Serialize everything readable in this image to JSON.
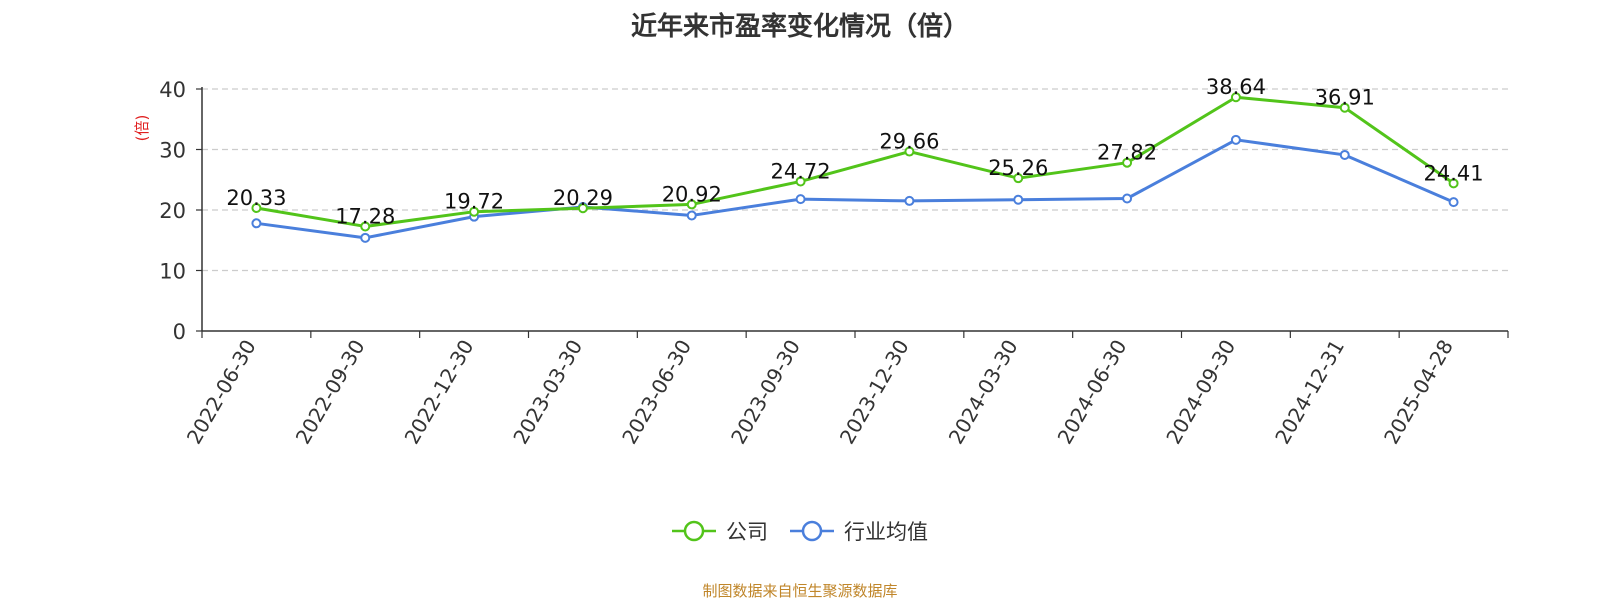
{
  "title": "近年来市盈率变化情况（倍）",
  "unit_label": "(倍)",
  "footer": "制图数据来自恒生聚源数据库",
  "colors": {
    "company": "#52c41a",
    "industry": "#4a7fdc"
  },
  "chart_data": {
    "type": "line",
    "title": "近年来市盈率变化情况（倍）",
    "ylabel": "(倍)",
    "ylim": [
      0,
      40
    ],
    "yticks": [
      0,
      10,
      20,
      30,
      40
    ],
    "grid": true,
    "legend_position": "bottom-center",
    "categories": [
      "2022-06-30",
      "2022-09-30",
      "2022-12-30",
      "2023-03-30",
      "2023-06-30",
      "2023-09-30",
      "2023-12-30",
      "2024-03-30",
      "2024-06-30",
      "2024-09-30",
      "2024-12-31",
      "2025-04-28"
    ],
    "series": [
      {
        "name": "公司",
        "values": [
          20.33,
          17.28,
          19.72,
          20.29,
          20.92,
          24.72,
          29.66,
          25.26,
          27.82,
          38.64,
          36.91,
          24.41
        ],
        "labels_shown": true
      },
      {
        "name": "行业均值",
        "values": [
          17.8,
          15.4,
          18.9,
          20.5,
          19.1,
          21.8,
          21.5,
          21.7,
          21.9,
          31.6,
          29.1,
          21.3
        ],
        "labels_shown": false
      }
    ]
  }
}
